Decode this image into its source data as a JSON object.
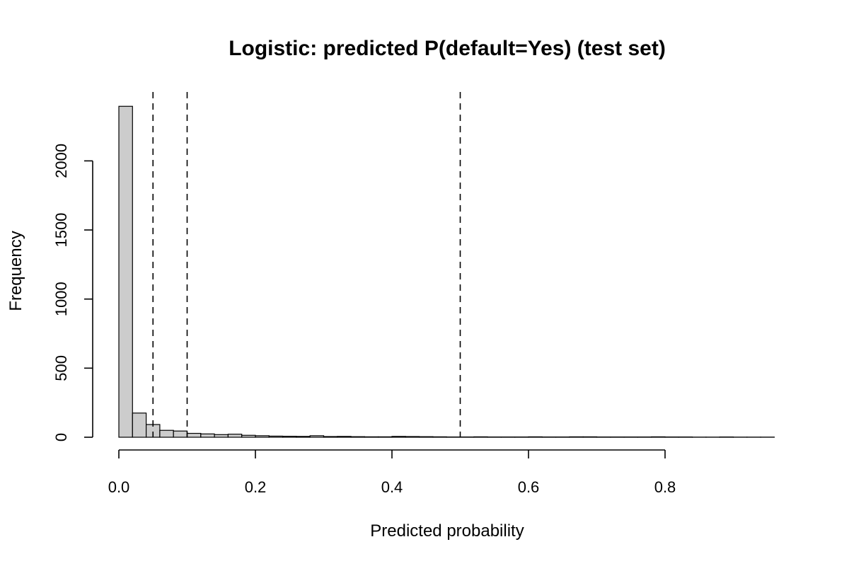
{
  "chart_data": {
    "type": "bar",
    "title": "Logistic: predicted P(default=Yes) (test set)",
    "xlabel": "Predicted probability",
    "ylabel": "Frequency",
    "bin_width": 0.02,
    "bin_starts": [
      0.0,
      0.02,
      0.04,
      0.06,
      0.08,
      0.1,
      0.12,
      0.14,
      0.16,
      0.18,
      0.2,
      0.22,
      0.24,
      0.26,
      0.28,
      0.3,
      0.32,
      0.34,
      0.36,
      0.38,
      0.4,
      0.42,
      0.44,
      0.46,
      0.48,
      0.5,
      0.52,
      0.54,
      0.56,
      0.58,
      0.6,
      0.62,
      0.64,
      0.66,
      0.68,
      0.7,
      0.72,
      0.74,
      0.76,
      0.78,
      0.8,
      0.82,
      0.84,
      0.86,
      0.88,
      0.9,
      0.92,
      0.94
    ],
    "values": [
      2395,
      175,
      92,
      50,
      45,
      28,
      24,
      19,
      22,
      14,
      11,
      8,
      7,
      6,
      11,
      5,
      6,
      4,
      3,
      3,
      6,
      5,
      4,
      3,
      2,
      2,
      3,
      2,
      2,
      2,
      3,
      2,
      2,
      3,
      3,
      2,
      2,
      2,
      2,
      3,
      2,
      2,
      1,
      1,
      2,
      1,
      1,
      1
    ],
    "xlim": [
      0,
      0.96
    ],
    "ylim": [
      0,
      2395
    ],
    "x_ticks": [
      "0.0",
      "0.2",
      "0.4",
      "0.6",
      "0.8"
    ],
    "x_tick_values": [
      0.0,
      0.2,
      0.4,
      0.6,
      0.8
    ],
    "y_ticks": [
      "0",
      "500",
      "1000",
      "1500",
      "2000"
    ],
    "y_tick_values": [
      0,
      500,
      1000,
      1500,
      2000
    ],
    "reference_lines": [
      0.05,
      0.1,
      0.5
    ],
    "reference_line_style": "dashed",
    "grid": false,
    "bar_color": "#cccccc"
  }
}
